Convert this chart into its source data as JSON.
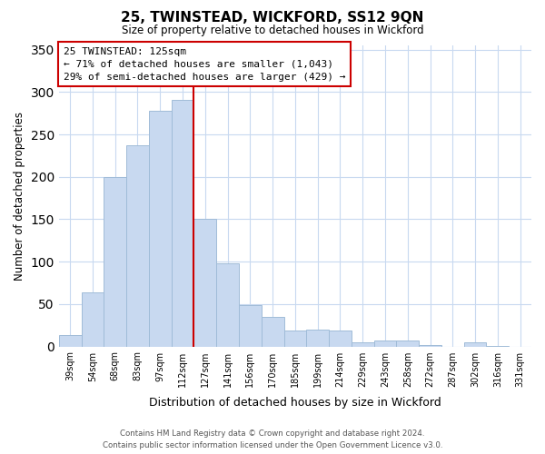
{
  "title": "25, TWINSTEAD, WICKFORD, SS12 9QN",
  "subtitle": "Size of property relative to detached houses in Wickford",
  "xlabel": "Distribution of detached houses by size in Wickford",
  "ylabel": "Number of detached properties",
  "bar_color": "#c8d9f0",
  "bar_edge_color": "#a0bcd8",
  "categories": [
    "39sqm",
    "54sqm",
    "68sqm",
    "83sqm",
    "97sqm",
    "112sqm",
    "127sqm",
    "141sqm",
    "156sqm",
    "170sqm",
    "185sqm",
    "199sqm",
    "214sqm",
    "229sqm",
    "243sqm",
    "258sqm",
    "272sqm",
    "287sqm",
    "302sqm",
    "316sqm",
    "331sqm"
  ],
  "values": [
    13,
    64,
    200,
    237,
    278,
    291,
    150,
    98,
    49,
    35,
    19,
    20,
    19,
    5,
    7,
    7,
    2,
    0,
    5,
    1,
    0
  ],
  "vline_index": 6,
  "vline_color": "#cc0000",
  "ylim": [
    0,
    355
  ],
  "yticks": [
    0,
    50,
    100,
    150,
    200,
    250,
    300,
    350
  ],
  "annotation_title": "25 TWINSTEAD: 125sqm",
  "annotation_line1": "← 71% of detached houses are smaller (1,043)",
  "annotation_line2": "29% of semi-detached houses are larger (429) →",
  "footer_line1": "Contains HM Land Registry data © Crown copyright and database right 2024.",
  "footer_line2": "Contains public sector information licensed under the Open Government Licence v3.0.",
  "background_color": "#ffffff",
  "grid_color": "#c8d9f0"
}
